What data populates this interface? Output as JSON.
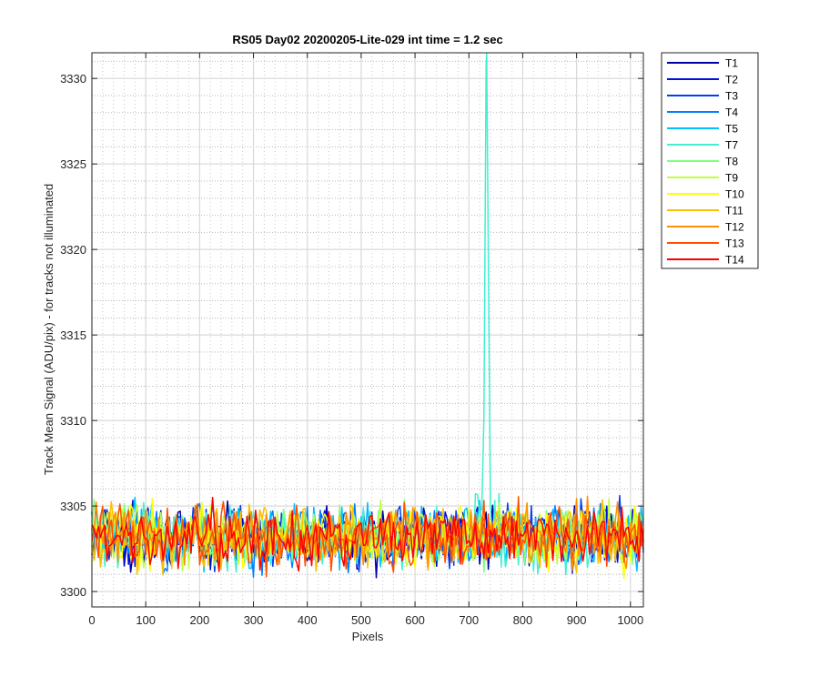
{
  "chart_data": {
    "type": "line",
    "title": "RS05 Day02 20200205-Lite-029 int time = 1.2 sec",
    "xlabel": "Pixels",
    "ylabel": "Track Mean Signal (ADU/pix) - for tracks not illuminated",
    "xlim": [
      0,
      1024
    ],
    "ylim": [
      3299.1,
      3331.5
    ],
    "xticks": [
      0,
      100,
      200,
      300,
      400,
      500,
      600,
      700,
      800,
      900,
      1000
    ],
    "yticks": [
      3300,
      3305,
      3310,
      3315,
      3320,
      3325,
      3330
    ],
    "grid": "major and minor",
    "legend": "outside-right",
    "noise": {
      "mean": 3303.2,
      "spread": 1.1,
      "step": 4
    },
    "spike": {
      "series": "T7",
      "x": 733,
      "peak": 3331.5,
      "width": 12
    },
    "series": [
      {
        "name": "T1",
        "color": "#0000aa"
      },
      {
        "name": "T2",
        "color": "#0010dd"
      },
      {
        "name": "T3",
        "color": "#0040f0"
      },
      {
        "name": "T4",
        "color": "#0080ff"
      },
      {
        "name": "T5",
        "color": "#00c0ff"
      },
      {
        "name": "T7",
        "color": "#40f0d0"
      },
      {
        "name": "T8",
        "color": "#80ff80"
      },
      {
        "name": "T9",
        "color": "#c0ff40"
      },
      {
        "name": "T10",
        "color": "#ffff00"
      },
      {
        "name": "T11",
        "color": "#ffc000"
      },
      {
        "name": "T12",
        "color": "#ff9000"
      },
      {
        "name": "T13",
        "color": "#ff5000"
      },
      {
        "name": "T14",
        "color": "#ff0000"
      }
    ]
  }
}
